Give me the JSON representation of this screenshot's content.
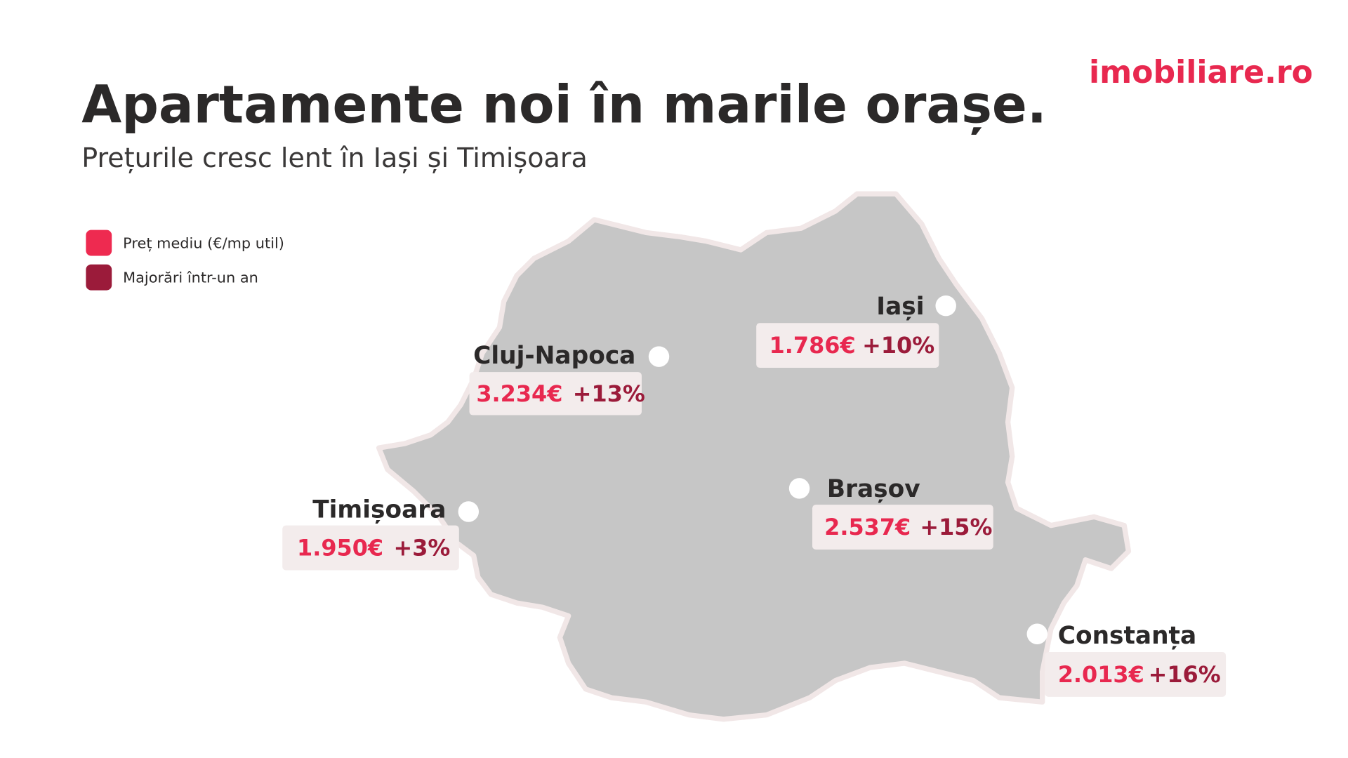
{
  "header": {
    "title": "Apartamente noi în marile orașe.",
    "subtitle": "Prețurile cresc lent în Iași și Timișoara",
    "logo": "imobiliare.ro"
  },
  "legend": [
    "Preț mediu (€/mp util)",
    "Majorări într-un an"
  ],
  "cities": [
    {
      "name": "Cluj-Napoca",
      "price": "3.234€",
      "change": "+13%"
    },
    {
      "name": "Iași",
      "price": "1.786€",
      "change": "+10%"
    },
    {
      "name": "Timișoara",
      "price": "1.950€",
      "change": "+3%"
    },
    {
      "name": "Brașov",
      "price": "2.537€",
      "change": "+15%"
    },
    {
      "name": "Constanța",
      "price": "2.013€",
      "change": "+16%"
    }
  ]
}
